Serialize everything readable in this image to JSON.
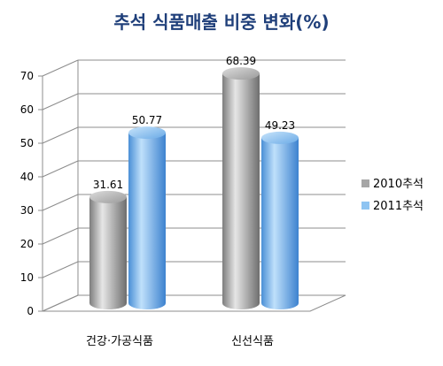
{
  "chart_data": {
    "type": "bar",
    "title": "추석 식품매출 비중 변화(%)",
    "categories": [
      "건강·가공식품",
      "신선식품"
    ],
    "series": [
      {
        "name": "2010추석",
        "values": [
          31.61,
          68.39
        ],
        "labels": [
          "31.61",
          "68.39"
        ],
        "color": "#a6a6a6"
      },
      {
        "name": "2011추석",
        "values": [
          50.77,
          49.23
        ],
        "labels": [
          "50.77",
          "49.23"
        ],
        "color": "#8ec4f2"
      }
    ],
    "ylim": [
      0,
      70
    ],
    "yticks": [
      "0",
      "10",
      "20",
      "30",
      "40",
      "50",
      "60",
      "70"
    ],
    "grid": true,
    "legend_position": "right",
    "style": "3d-cylinder",
    "title_color": "#1f3f7a"
  }
}
